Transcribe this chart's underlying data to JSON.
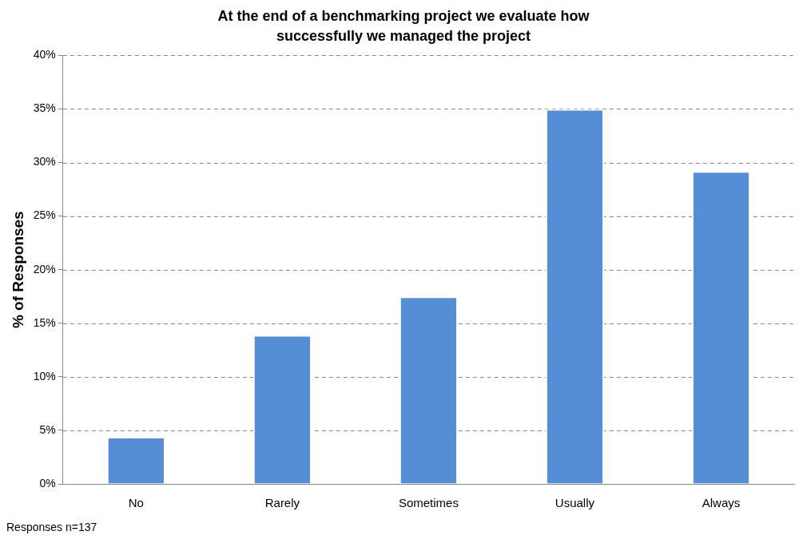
{
  "chart_data": {
    "type": "bar",
    "title": "At the end of a benchmarking project we evaluate how successfully we managed the project",
    "ylabel": "% of Responses",
    "categories": [
      "No",
      "Rarely",
      "Sometimes",
      "Usually",
      "Always"
    ],
    "values": [
      4.4,
      13.9,
      17.5,
      35.0,
      29.2
    ],
    "color": "#558ed5",
    "ylim": [
      0,
      40
    ],
    "yticks": [
      {
        "value": 0,
        "label": "0%"
      },
      {
        "value": 5,
        "label": "5%"
      },
      {
        "value": 10,
        "label": "10%"
      },
      {
        "value": 15,
        "label": "15%"
      },
      {
        "value": 20,
        "label": "20%"
      },
      {
        "value": 25,
        "label": "25%"
      },
      {
        "value": 30,
        "label": "30%"
      },
      {
        "value": 35,
        "label": "35%"
      },
      {
        "value": 40,
        "label": "40%"
      }
    ],
    "grid": "y",
    "legend": false,
    "annotations": [
      "Responses n=137"
    ]
  }
}
